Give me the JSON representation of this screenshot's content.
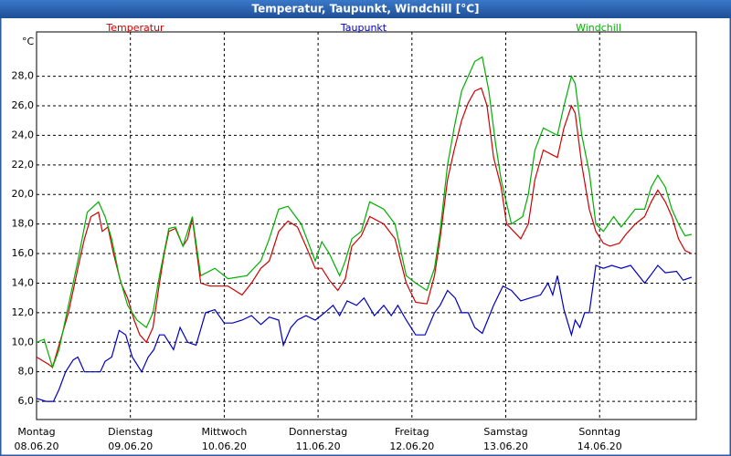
{
  "chart_data": {
    "type": "line",
    "title": "Temperatur, Taupunkt, Windchill [°C]",
    "y_unit": "°C",
    "xlim": [
      0,
      7.03
    ],
    "ylim": [
      4.77,
      31
    ],
    "grid": true,
    "xticks": [
      {
        "value": 0,
        "label": "Montag",
        "date": "08.06.20"
      },
      {
        "value": 1,
        "label": "Dienstag",
        "date": "09.06.20"
      },
      {
        "value": 2,
        "label": "Mittwoch",
        "date": "10.06.20"
      },
      {
        "value": 3,
        "label": "Donnerstag",
        "date": "11.06.20"
      },
      {
        "value": 4,
        "label": "Freitag",
        "date": "12.06.20"
      },
      {
        "value": 5,
        "label": "Samstag",
        "date": "13.06.20"
      },
      {
        "value": 6,
        "label": "Sonntag",
        "date": "14.06.20"
      }
    ],
    "yticks": [
      {
        "value": 6,
        "label": "6,0"
      },
      {
        "value": 8,
        "label": "8,0"
      },
      {
        "value": 10,
        "label": "10,0"
      },
      {
        "value": 12,
        "label": "12,0"
      },
      {
        "value": 14,
        "label": "14,0"
      },
      {
        "value": 16,
        "label": "16,0"
      },
      {
        "value": 18,
        "label": "18,0"
      },
      {
        "value": 20,
        "label": "20,0"
      },
      {
        "value": 22,
        "label": "22,0"
      },
      {
        "value": 24,
        "label": "24,0"
      },
      {
        "value": 26,
        "label": "26,0"
      },
      {
        "value": 28,
        "label": "28,0"
      }
    ],
    "series": [
      {
        "name": "Temperatur",
        "color": "#d00000",
        "x": [
          0,
          0.13,
          0.17,
          0.34,
          0.44,
          0.51,
          0.58,
          0.66,
          0.7,
          0.76,
          0.82,
          0.9,
          0.97,
          1.04,
          1.1,
          1.17,
          1.24,
          1.31,
          1.36,
          1.41,
          1.48,
          1.56,
          1.61,
          1.66,
          1.75,
          1.85,
          2.04,
          2.19,
          2.29,
          2.39,
          2.48,
          2.58,
          2.68,
          2.78,
          2.87,
          2.97,
          3.04,
          3.12,
          3.21,
          3.29,
          3.36,
          3.46,
          3.55,
          3.7,
          3.82,
          3.94,
          4.04,
          4.16,
          4.24,
          4.3,
          4.38,
          4.45,
          4.53,
          4.6,
          4.67,
          4.74,
          4.8,
          4.87,
          4.95,
          5.01,
          5.16,
          5.24,
          5.31,
          5.4,
          5.55,
          5.62,
          5.7,
          5.74,
          5.81,
          5.89,
          5.96,
          6.04,
          6.11,
          6.21,
          6.28,
          6.38,
          6.48,
          6.55,
          6.62,
          6.7,
          6.77,
          6.84,
          6.91,
          6.98
        ],
        "values": [
          9.0,
          8.5,
          8.3,
          12.0,
          15.0,
          17.0,
          18.5,
          18.8,
          17.5,
          17.8,
          16.0,
          14.0,
          13.0,
          11.5,
          10.5,
          10.0,
          11.0,
          14.0,
          16.0,
          17.5,
          17.7,
          16.5,
          17.0,
          18.4,
          14.0,
          13.8,
          13.8,
          13.2,
          14.0,
          15.0,
          15.5,
          17.5,
          18.2,
          17.8,
          16.5,
          15.0,
          15.0,
          14.2,
          13.5,
          14.3,
          16.5,
          17.2,
          18.5,
          18.0,
          17.0,
          14.0,
          12.7,
          12.6,
          14.5,
          17.0,
          21.0,
          23.0,
          25.0,
          26.2,
          27.0,
          27.2,
          26.0,
          22.5,
          20.5,
          18.0,
          17.0,
          18.0,
          21.0,
          23.0,
          22.5,
          24.5,
          26.0,
          25.5,
          22.0,
          19.0,
          17.5,
          16.7,
          16.5,
          16.7,
          17.3,
          18.0,
          18.5,
          19.5,
          20.3,
          19.5,
          18.5,
          17.0,
          16.2,
          16.0
        ]
      },
      {
        "name": "Taupunkt",
        "color": "#0000c0",
        "x": [
          0,
          0.1,
          0.18,
          0.24,
          0.31,
          0.39,
          0.44,
          0.51,
          0.58,
          0.68,
          0.73,
          0.8,
          0.88,
          0.95,
          1.02,
          1.12,
          1.19,
          1.25,
          1.31,
          1.36,
          1.46,
          1.53,
          1.61,
          1.7,
          1.8,
          1.9,
          2.0,
          2.09,
          2.19,
          2.29,
          2.39,
          2.48,
          2.58,
          2.63,
          2.71,
          2.78,
          2.87,
          2.97,
          3.07,
          3.16,
          3.23,
          3.31,
          3.41,
          3.49,
          3.6,
          3.7,
          3.78,
          3.85,
          3.94,
          4.04,
          4.14,
          4.24,
          4.3,
          4.38,
          4.46,
          4.53,
          4.6,
          4.67,
          4.75,
          4.87,
          4.97,
          5.06,
          5.16,
          5.26,
          5.37,
          5.45,
          5.5,
          5.55,
          5.62,
          5.7,
          5.74,
          5.79,
          5.84,
          5.89,
          5.96,
          6.04,
          6.13,
          6.23,
          6.33,
          6.48,
          6.54,
          6.62,
          6.7,
          6.82,
          6.89,
          6.98
        ],
        "values": [
          6.2,
          6.0,
          6.0,
          6.8,
          8.0,
          8.8,
          9.0,
          8.0,
          8.0,
          8.0,
          8.7,
          9.0,
          10.8,
          10.5,
          9.0,
          8.0,
          9.0,
          9.5,
          10.5,
          10.5,
          9.5,
          11.0,
          10.0,
          9.8,
          12.0,
          12.2,
          11.3,
          11.3,
          11.5,
          11.8,
          11.2,
          11.7,
          11.5,
          9.8,
          11.0,
          11.5,
          11.8,
          11.5,
          12.0,
          12.5,
          11.8,
          12.8,
          12.5,
          13.0,
          11.8,
          12.5,
          11.8,
          12.5,
          11.5,
          10.5,
          10.5,
          12.0,
          12.5,
          13.5,
          13.0,
          12.0,
          12.0,
          11.0,
          10.6,
          12.5,
          13.8,
          13.5,
          12.8,
          13.0,
          13.2,
          14.0,
          13.2,
          14.5,
          12.2,
          10.5,
          11.5,
          11.0,
          12.0,
          12.0,
          15.2,
          15.0,
          15.2,
          15.0,
          15.2,
          14.0,
          14.5,
          15.2,
          14.7,
          14.8,
          14.2,
          14.4
        ]
      },
      {
        "name": "Windchill",
        "color": "#00b000",
        "x": [
          0,
          0.08,
          0.17,
          0.24,
          0.34,
          0.44,
          0.54,
          0.66,
          0.73,
          0.8,
          0.88,
          0.97,
          1.07,
          1.17,
          1.24,
          1.31,
          1.41,
          1.48,
          1.56,
          1.66,
          1.75,
          1.9,
          2.04,
          2.24,
          2.39,
          2.48,
          2.58,
          2.68,
          2.82,
          2.97,
          3.04,
          3.12,
          3.23,
          3.29,
          3.36,
          3.46,
          3.55,
          3.7,
          3.82,
          3.94,
          4.04,
          4.16,
          4.24,
          4.3,
          4.38,
          4.45,
          4.53,
          4.6,
          4.67,
          4.75,
          4.82,
          4.89,
          4.95,
          5.06,
          5.18,
          5.24,
          5.31,
          5.4,
          5.55,
          5.62,
          5.7,
          5.74,
          5.81,
          5.89,
          5.96,
          6.04,
          6.15,
          6.23,
          6.38,
          6.48,
          6.55,
          6.62,
          6.7,
          6.77,
          6.84,
          6.91,
          6.98
        ],
        "values": [
          10.0,
          10.2,
          8.3,
          9.5,
          12.5,
          15.5,
          18.8,
          19.5,
          18.5,
          17.0,
          14.5,
          12.5,
          11.5,
          11.0,
          12.0,
          14.5,
          17.7,
          17.8,
          16.5,
          18.5,
          14.5,
          15.0,
          14.3,
          14.5,
          15.5,
          17.0,
          19.0,
          19.2,
          18.0,
          15.5,
          16.8,
          16.0,
          14.5,
          15.5,
          17.0,
          17.5,
          19.5,
          19.0,
          18.0,
          14.5,
          14.0,
          13.5,
          15.0,
          17.5,
          22.0,
          24.5,
          27.0,
          28.0,
          29.0,
          29.3,
          27.0,
          23.5,
          21.0,
          18.0,
          18.5,
          20.0,
          23.0,
          24.5,
          24.0,
          26.0,
          28.0,
          27.5,
          24.0,
          21.5,
          18.0,
          17.5,
          18.5,
          17.8,
          19.0,
          19.0,
          20.5,
          21.3,
          20.5,
          19.0,
          18.0,
          17.2,
          17.3
        ]
      }
    ]
  }
}
